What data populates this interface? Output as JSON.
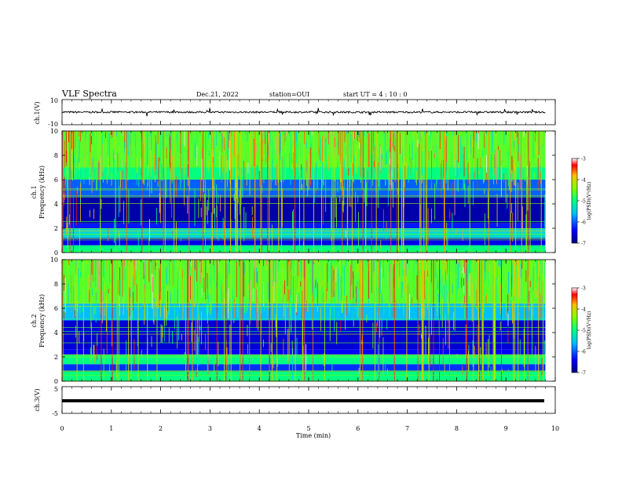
{
  "header": {
    "title": "VLF Spectra",
    "date": "Dec.21, 2022",
    "station": "station=OUI",
    "start_ut": "start  UT =   4 : 10 : 0"
  },
  "chart_data": [
    {
      "type": "line",
      "panel": "ch1-waveform",
      "ylabel": "ch.1(V)",
      "ylim": [
        -10,
        10
      ],
      "y_ticks": [
        "10",
        "-10"
      ],
      "x": [
        0,
        1,
        2,
        3,
        4,
        5,
        6,
        7,
        8,
        9,
        9.8
      ],
      "series": [
        {
          "values": [
            0,
            0,
            0,
            0,
            0,
            0,
            0,
            0,
            0,
            0,
            0
          ]
        }
      ],
      "color": "#000000"
    },
    {
      "type": "heatmap",
      "panel": "ch1-spectrogram",
      "ylabel_lines": [
        "ch.1",
        "Frequency (kHz)"
      ],
      "ylim": [
        0,
        10
      ],
      "y_ticks": [
        "0",
        "2",
        "4",
        "6",
        "8",
        "10"
      ],
      "xlim": [
        0,
        9.8
      ],
      "bands": [
        {
          "f_from": 0,
          "f_to": 0.6,
          "level": -5.0
        },
        {
          "f_from": 0.6,
          "f_to": 1.2,
          "level": -6.5
        },
        {
          "f_from": 1.2,
          "f_to": 2.0,
          "level": -5.4
        },
        {
          "f_from": 2.0,
          "f_to": 2.4,
          "level": -6.3
        },
        {
          "f_from": 2.4,
          "f_to": 4.6,
          "level": -6.8
        },
        {
          "f_from": 4.6,
          "f_to": 6.0,
          "level": -6.0
        },
        {
          "f_from": 6.0,
          "f_to": 7.0,
          "level": -5.0
        },
        {
          "f_from": 7.0,
          "f_to": 10.0,
          "level": -4.6
        }
      ],
      "colorbar": {
        "label": "log(PSD)(V²/Hz)",
        "range": [
          -7,
          -3
        ],
        "ticks": [
          "-3",
          "-4",
          "-5",
          "-6",
          "-7"
        ]
      }
    },
    {
      "type": "heatmap",
      "panel": "ch2-spectrogram",
      "ylabel_lines": [
        "ch.2",
        "Frequency (kHz)"
      ],
      "ylim": [
        0,
        10
      ],
      "y_ticks": [
        "0",
        "2",
        "4",
        "6",
        "8",
        "10"
      ],
      "xlim": [
        0,
        9.8
      ],
      "bands": [
        {
          "f_from": 0,
          "f_to": 0.8,
          "level": -5.0
        },
        {
          "f_from": 0.8,
          "f_to": 1.4,
          "level": -6.2
        },
        {
          "f_from": 1.4,
          "f_to": 2.2,
          "level": -5.0
        },
        {
          "f_from": 2.2,
          "f_to": 2.6,
          "level": -6.4
        },
        {
          "f_from": 2.6,
          "f_to": 5.0,
          "level": -6.6
        },
        {
          "f_from": 5.0,
          "f_to": 6.4,
          "level": -5.6
        },
        {
          "f_from": 6.4,
          "f_to": 10.0,
          "level": -4.6
        }
      ],
      "colorbar": {
        "label": "log(PSD)(V²/Hz)",
        "range": [
          -7,
          -3
        ],
        "ticks": [
          "-3",
          "-4",
          "-5",
          "-6",
          "-7"
        ]
      }
    },
    {
      "type": "line",
      "panel": "ch3-waveform",
      "ylabel": "ch.3(V)",
      "ylim": [
        -5,
        5
      ],
      "y_ticks": [
        "5",
        "-5"
      ],
      "x": [
        0,
        9.8
      ],
      "series": [
        {
          "values": [
            -0.5,
            -0.5
          ]
        }
      ],
      "color": "#000000"
    }
  ],
  "x_axis": {
    "label": "Time  (min)",
    "range": [
      0,
      10
    ],
    "ticks": [
      "0",
      "1",
      "2",
      "3",
      "4",
      "5",
      "6",
      "7",
      "8",
      "9",
      "10"
    ]
  }
}
